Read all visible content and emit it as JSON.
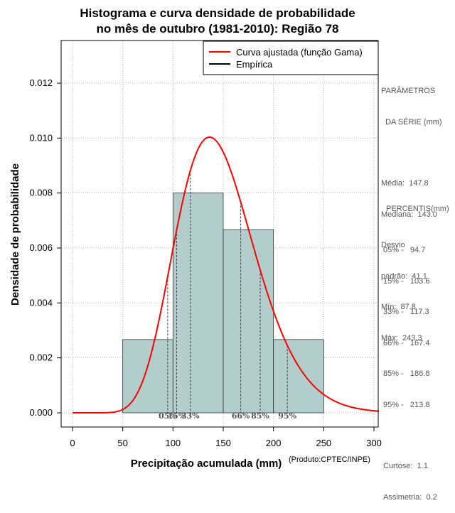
{
  "chart_data": {
    "type": "histogram",
    "title_line1": "Histograma e curva densidade de probabilidade",
    "title_line2": "no mês de outubro (1981-2010): Região 78",
    "xlabel": "Precipitação acumulada (mm)",
    "ylabel": "Densidade de probabilidade",
    "credit": "(Produto:CPTEC/INPE)",
    "xlim": [
      0,
      305
    ],
    "ylim": [
      0,
      0.0135
    ],
    "x_ticks": [
      0,
      50,
      100,
      150,
      200,
      250,
      300
    ],
    "y_ticks": [
      0.0,
      0.002,
      0.004,
      0.006,
      0.008,
      0.01,
      0.012
    ],
    "y_tick_labels": [
      "0.000",
      "0.002",
      "0.004",
      "0.006",
      "0.008",
      "0.010",
      "0.012"
    ],
    "grid": true,
    "bins": [
      {
        "start": 50,
        "end": 100,
        "density": 0.002667
      },
      {
        "start": 100,
        "end": 150,
        "density": 0.008
      },
      {
        "start": 150,
        "end": 200,
        "density": 0.006667
      },
      {
        "start": 200,
        "end": 250,
        "density": 0.002667
      }
    ],
    "bar_color": "#b3cccc",
    "curve": {
      "name": "Curva ajustada (função Gama)",
      "color": "#ff0000",
      "distribution": "gamma",
      "mean": 147.8,
      "sd": 41.1
    },
    "percentile_lines": [
      {
        "label": "05%",
        "x": 94.7
      },
      {
        "label": "15%",
        "x": 103.6
      },
      {
        "label": "33%",
        "x": 117.3
      },
      {
        "label": "66%",
        "x": 167.4
      },
      {
        "label": "85%",
        "x": 186.8
      },
      {
        "label": "95%",
        "x": 213.8
      }
    ],
    "legend": [
      {
        "label": "Curva ajustada (função Gama)",
        "color": "#ff0000"
      },
      {
        "label": "Empírica",
        "color": "#000000"
      }
    ],
    "legend_position": "top-right"
  },
  "side_panel": {
    "params_header_1": "PARÂMETROS",
    "params_header_2": "  DA SÉRIE (mm)",
    "media": "Média:  147.8",
    "mediana": "Mediana:  143.0",
    "desvio_1": "Desvio",
    "desvio_2": "padrão:  41.1",
    "min": "Mín:  87.8",
    "max": "Máx:  243.3",
    "percentis_header": "PERCENTIS(mm)",
    "p05": "05% -   94.7",
    "p15": "15% -   103.6",
    "p33": "33% -   117.3",
    "p66": "66% -   167.4",
    "p85": "85% -   186.8",
    "p95": "95% -   213.8",
    "curtose": "Curtose:  1.1",
    "assimetria": "Assimetria:  0.2"
  }
}
